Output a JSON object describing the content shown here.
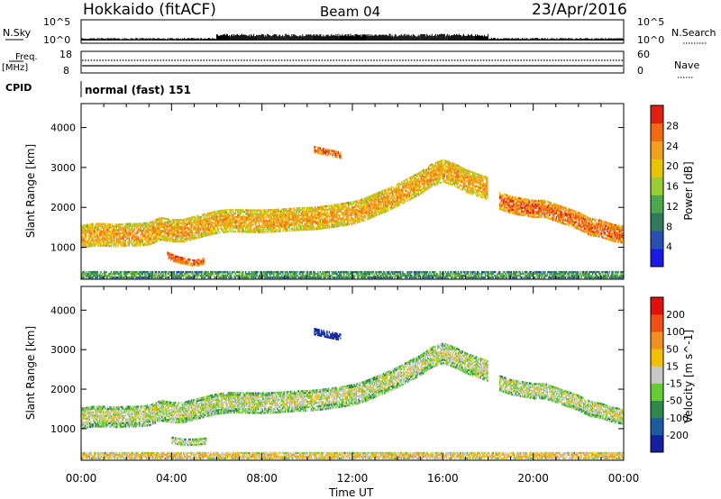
{
  "header": {
    "station": "Hokkaido (fitACF)",
    "beam": "Beam 04",
    "date": "23/Apr/2016"
  },
  "top_panels": {
    "nsky_label": "N.Sky",
    "nsky_ticks": [
      "10^5",
      "10^0"
    ],
    "nsearch_label": "N.Search",
    "nsearch_ticks": [
      "10^5",
      "10^0"
    ],
    "freq_label": "Freq.",
    "freq_unit": "[MHz]",
    "freq_ticks": [
      "18",
      "8"
    ],
    "nave_label": "Nave",
    "nave_ticks": [
      "60",
      "0"
    ],
    "cpid_label": "CPID",
    "cpid_value": "normal (fast) 151"
  },
  "chart_data": [
    {
      "type": "heatmap",
      "name": "power",
      "ylabel": "Slant Range [km]",
      "ylim": [
        200,
        4600
      ],
      "yticks": [
        "4000",
        "3000",
        "2000",
        "1000"
      ],
      "xlim": [
        0,
        24
      ],
      "colorbar_label": "Power [dB]",
      "colorbar_ticks": [
        "28",
        "24",
        "20",
        "16",
        "12",
        "8",
        "4"
      ],
      "colors": [
        "#1a1ae6",
        "#2a4fb0",
        "#2f7a5a",
        "#4ca84c",
        "#9acd32",
        "#e8c400",
        "#f0a020",
        "#f06a10",
        "#e02010"
      ],
      "bands": [
        {
          "x": [
            0,
            0.5,
            1,
            1.5,
            2,
            2.5,
            3,
            3.5,
            4,
            4.5,
            5,
            5.5,
            6,
            6.5,
            7,
            7.5,
            8,
            8.5,
            9,
            9.5,
            10,
            10.5,
            11,
            11.5,
            12,
            12.5,
            13,
            13.5,
            14,
            14.5,
            15,
            15.5,
            16,
            16.5,
            17,
            17.5,
            18
          ],
          "y": [
            1250,
            1300,
            1300,
            1280,
            1300,
            1300,
            1330,
            1450,
            1400,
            1400,
            1480,
            1550,
            1620,
            1650,
            1650,
            1640,
            1640,
            1650,
            1670,
            1690,
            1700,
            1720,
            1760,
            1800,
            1850,
            1930,
            2050,
            2170,
            2300,
            2450,
            2600,
            2800,
            2900,
            2800,
            2650,
            2550,
            2450
          ],
          "w": 550,
          "level": 6
        },
        {
          "x": [
            18.5,
            19,
            19.5,
            20,
            20.5,
            21,
            21.5,
            22,
            22.5,
            23,
            23.5,
            24
          ],
          "y": [
            2150,
            2050,
            2000,
            1950,
            1950,
            1850,
            1750,
            1650,
            1500,
            1450,
            1350,
            1300
          ],
          "w": 420,
          "level": 7
        },
        {
          "x": [
            3.8,
            4.2,
            4.6,
            5,
            5.4
          ],
          "y": [
            800,
            700,
            650,
            600,
            650
          ],
          "w": 180,
          "level": 7
        },
        {
          "x": [
            10.3,
            10.7,
            11.1,
            11.5
          ],
          "y": [
            3450,
            3400,
            3350,
            3300
          ],
          "w": 180,
          "level": 7
        },
        {
          "x": [
            0,
            1,
            2,
            3,
            4,
            5,
            6,
            7,
            8,
            9,
            10,
            11,
            12,
            13,
            14,
            15,
            16,
            17,
            18,
            19,
            20,
            21,
            22,
            23,
            24
          ],
          "y": [
            300,
            300,
            300,
            300,
            300,
            300,
            300,
            300,
            300,
            300,
            300,
            300,
            300,
            300,
            300,
            300,
            300,
            300,
            300,
            300,
            300,
            300,
            300,
            300,
            300
          ],
          "w": 150,
          "level": 3
        }
      ]
    },
    {
      "type": "heatmap",
      "name": "velocity",
      "ylabel": "Slant Range [km]",
      "ylim": [
        200,
        4600
      ],
      "yticks": [
        "4000",
        "3000",
        "2000",
        "1000"
      ],
      "xlim": [
        0,
        24
      ],
      "colorbar_label": "Velocity [m s^-1]",
      "colorbar_ticks": [
        "200",
        "100",
        "50",
        "15",
        "-15",
        "-50",
        "-100",
        "-200"
      ],
      "colors": [
        "#1420a0",
        "#1e5aa0",
        "#2e8a4a",
        "#66cc33",
        "#c8c8c8",
        "#f0c000",
        "#f09020",
        "#f05010",
        "#e01010"
      ],
      "bands": [
        {
          "x": [
            0,
            0.5,
            1,
            1.5,
            2,
            2.5,
            3,
            3.5,
            4,
            4.5,
            5,
            5.5,
            6,
            6.5,
            7,
            7.5,
            8,
            8.5,
            9,
            9.5,
            10,
            10.5,
            11,
            11.5,
            12,
            12.5,
            13,
            13.5,
            14,
            14.5,
            15,
            15.5,
            16,
            16.5,
            17,
            17.5,
            18
          ],
          "y": [
            1250,
            1300,
            1300,
            1280,
            1300,
            1300,
            1330,
            1450,
            1400,
            1400,
            1480,
            1550,
            1620,
            1650,
            1650,
            1640,
            1640,
            1650,
            1670,
            1690,
            1700,
            1720,
            1760,
            1800,
            1850,
            1930,
            2050,
            2170,
            2300,
            2450,
            2600,
            2800,
            2900,
            2800,
            2650,
            2550,
            2450
          ],
          "w": 520,
          "level": 4
        },
        {
          "x": [
            18.5,
            19,
            19.5,
            20,
            20.5,
            21,
            21.5,
            22,
            22.5,
            23,
            23.5,
            24
          ],
          "y": [
            2150,
            2050,
            2000,
            1950,
            1950,
            1850,
            1750,
            1650,
            1500,
            1450,
            1350,
            1300
          ],
          "w": 400,
          "level": 4
        },
        {
          "x": [
            4,
            4.5,
            5,
            5.5
          ],
          "y": [
            700,
            650,
            650,
            680
          ],
          "w": 160,
          "level": 4
        },
        {
          "x": [
            10.3,
            10.7,
            11.1,
            11.5
          ],
          "y": [
            3450,
            3400,
            3350,
            3300
          ],
          "w": 160,
          "level": 0
        },
        {
          "x": [
            0,
            2,
            4,
            6,
            8,
            10,
            12,
            14,
            16,
            18,
            20,
            22,
            24
          ],
          "y": [
            300,
            300,
            300,
            300,
            300,
            300,
            300,
            300,
            300,
            300,
            300,
            300,
            300
          ],
          "w": 140,
          "level": 5
        }
      ]
    }
  ],
  "xaxis": {
    "ticks": [
      "00:00",
      "04:00",
      "08:00",
      "12:00",
      "16:00",
      "20:00",
      "00:00"
    ],
    "label": "Time UT"
  }
}
